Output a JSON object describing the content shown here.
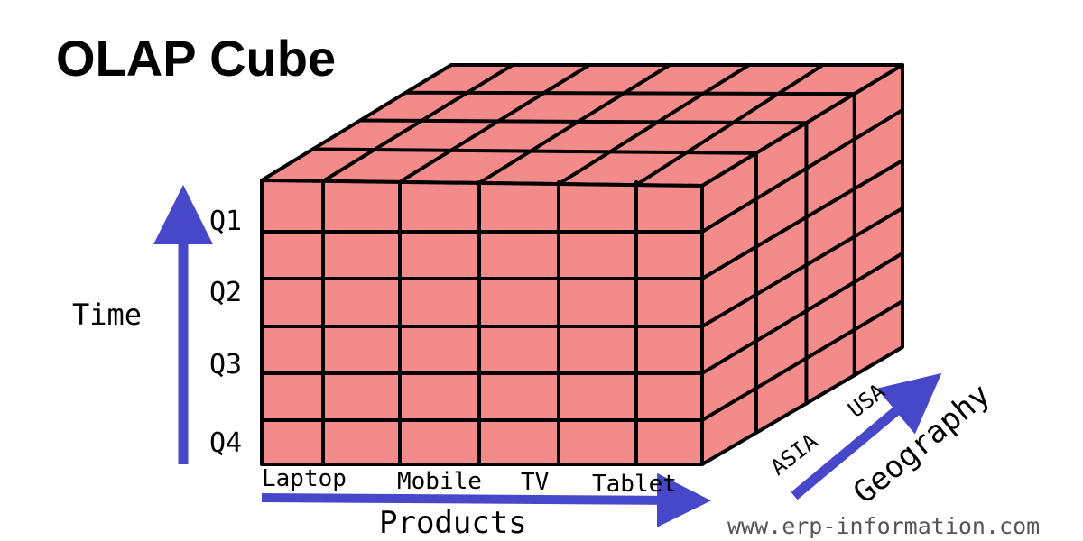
{
  "title": "OLAP Cube",
  "axes": {
    "time": {
      "label": "Time",
      "quarters": [
        "Q1",
        "Q2",
        "Q3",
        "Q4"
      ]
    },
    "products": {
      "label": "Products",
      "items": [
        "Laptop",
        "Mobile",
        "TV",
        "Tablet"
      ]
    },
    "geography": {
      "label": "Geography",
      "regions": [
        "ASIA",
        "USA"
      ]
    }
  },
  "watermark": "www.erp-information.com",
  "colors": {
    "cube_fill": "#f48b8b",
    "cube_stroke": "#000000",
    "arrow": "#4747c9",
    "text": "#000000",
    "watermark": "#555555"
  }
}
